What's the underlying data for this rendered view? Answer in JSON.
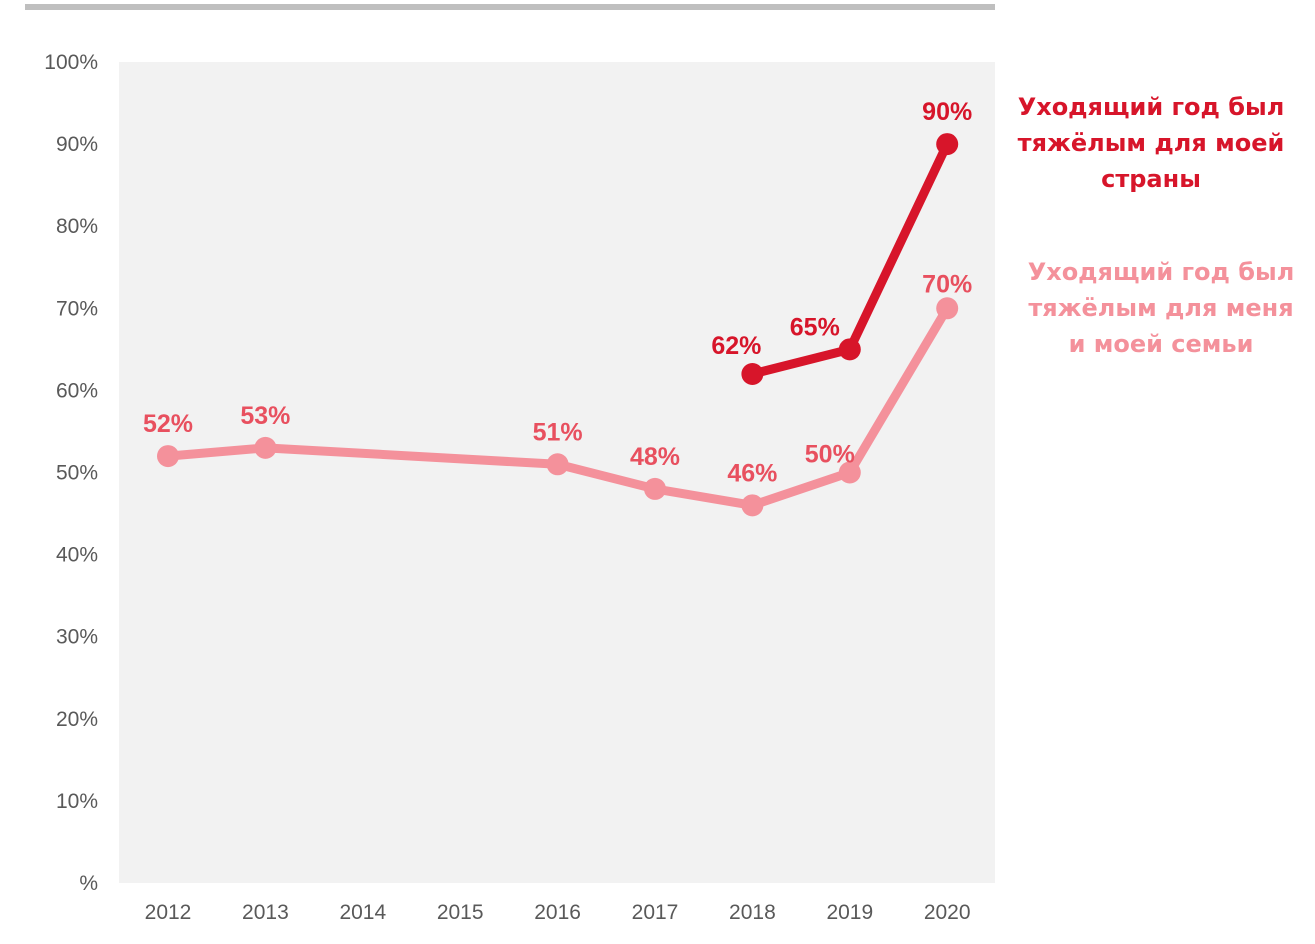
{
  "chart_data": {
    "type": "line",
    "x": [
      "2012",
      "2013",
      "2014",
      "2015",
      "2016",
      "2017",
      "2018",
      "2019",
      "2020"
    ],
    "yticks": [
      "%",
      "10%",
      "20%",
      "30%",
      "40%",
      "50%",
      "60%",
      "70%",
      "80%",
      "90%",
      "100%"
    ],
    "ylim": [
      0,
      100
    ],
    "grid": false,
    "series": [
      {
        "name": "Уходящий год был тяжёлым для меня и моей семьи",
        "color": "#F4919B",
        "label_color": "#E8505F",
        "points": [
          {
            "x": "2012",
            "y": 52,
            "label": "52%"
          },
          {
            "x": "2013",
            "y": 53,
            "label": "53%"
          },
          {
            "x": "2016",
            "y": 51,
            "label": "51%"
          },
          {
            "x": "2017",
            "y": 48,
            "label": "48%"
          },
          {
            "x": "2018",
            "y": 46,
            "label": "46%"
          },
          {
            "x": "2019",
            "y": 50,
            "label": "50%"
          },
          {
            "x": "2020",
            "y": 70,
            "label": "70%"
          }
        ]
      },
      {
        "name": "Уходящий год был тяжёлым для моей страны",
        "color": "#D7152A",
        "label_color": "#D7152A",
        "points": [
          {
            "x": "2018",
            "y": 62,
            "label": "62%"
          },
          {
            "x": "2019",
            "y": 65,
            "label": "65%"
          },
          {
            "x": "2020",
            "y": 90,
            "label": "90%"
          }
        ]
      }
    ],
    "legend": "right",
    "plot_background": "#F2F2F2"
  },
  "legend": {
    "country": {
      "text": "Уходящий год был\nтяжёлым для моей\nстраны",
      "color": "#D7152A"
    },
    "family": {
      "text": "Уходящий год был\nтяжёлым для меня\nи моей семьи",
      "color": "#F4919B"
    }
  }
}
